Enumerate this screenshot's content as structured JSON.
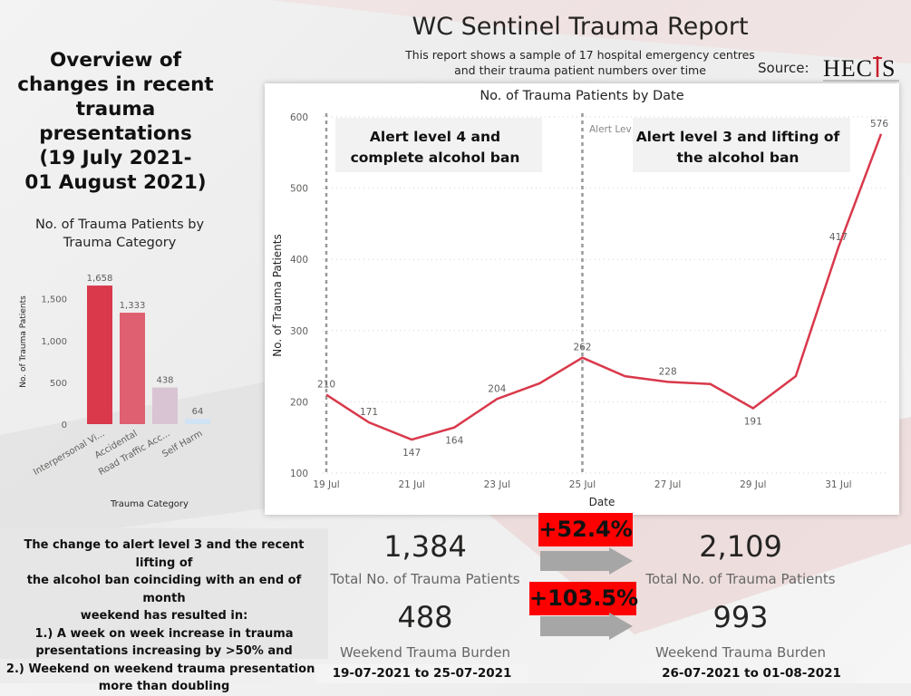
{
  "header": {
    "title": "WC Sentinel Trauma Report",
    "subtitle_line1": "This report shows a sample of 17 hospital emergency centres",
    "subtitle_line2": "and their trauma patient numbers over time",
    "source_label": "Source:",
    "logo_text": "HECTIS",
    "accent_color": "#e04050"
  },
  "overview": {
    "lines": [
      "Overview of",
      "changes in recent",
      "trauma",
      "presentations",
      "(19 July 2021-",
      "01 August 2021)"
    ]
  },
  "summary": {
    "lines": [
      "The change to alert level 3 and the recent lifting of",
      "the alcohol ban coinciding with an end of month",
      "weekend has resulted in:",
      "1.) A week on week increase in trauma",
      "presentations increasing by >50% and",
      "2.) Weekend on weekend trauma presentations",
      "more than doubling"
    ]
  },
  "kpis": {
    "week1": {
      "total": "1,384",
      "total_label": "Total No. of Trauma Patients",
      "weekend": "488",
      "weekend_label": "Weekend Trauma Burden",
      "period": "19-07-2021 to 25-07-2021"
    },
    "week2": {
      "total": "2,109",
      "total_label": "Total No. of Trauma Patients",
      "weekend": "993",
      "weekend_label": "Weekend Trauma Burden",
      "period": "26-07-2021 to 01-08-2021"
    },
    "change_total": "+52.4%",
    "change_weekend": "+103.5%"
  },
  "chart_data": [
    {
      "type": "bar",
      "title": "No. of Trauma Patients by Trauma Category",
      "xlabel": "Trauma Category",
      "ylabel": "No. of Trauma Patients",
      "categories": [
        "Interpersonal Vi...",
        "Accidental",
        "Road Traffic Acc...",
        "Self Harm"
      ],
      "values": [
        1658,
        1333,
        438,
        64
      ],
      "value_labels": [
        "1,658",
        "1,333",
        "438",
        "64"
      ],
      "bar_colors": [
        "#d9394b",
        "#df6070",
        "#d8c4d3",
        "#cfe3f5"
      ],
      "yticks": [
        "0",
        "500",
        "1,000",
        "1,500"
      ],
      "ylim": [
        0,
        1800
      ],
      "grid": false
    },
    {
      "type": "line",
      "title": "No. of Trauma Patients by Date",
      "xlabel": "Date",
      "ylabel": "No. of Trauma Patients",
      "x": [
        "2021-07-19",
        "2021-07-20",
        "2021-07-21",
        "2021-07-22",
        "2021-07-23",
        "2021-07-24",
        "2021-07-25",
        "2021-07-26",
        "2021-07-27",
        "2021-07-28",
        "2021-07-29",
        "2021-07-30",
        "2021-07-31",
        "2021-08-01"
      ],
      "values": [
        210,
        171,
        147,
        164,
        204,
        226,
        262,
        236,
        228,
        225,
        191,
        236,
        417,
        576
      ],
      "point_labels": {
        "0": "210",
        "1": "171",
        "2": "147",
        "3": "164",
        "4": "204",
        "6": "262",
        "8": "228",
        "10": "191",
        "12": "417",
        "13": "576"
      },
      "xtick_labels": [
        "19 Jul",
        "21 Jul",
        "23 Jul",
        "25 Jul",
        "27 Jul",
        "29 Jul",
        "31 Jul"
      ],
      "yticks": [
        "100",
        "200",
        "300",
        "400",
        "500",
        "600"
      ],
      "ylim": [
        100,
        600
      ],
      "grid": true,
      "line_color": "#d9394b",
      "annotations": [
        "Alert level 4 and complete alcohol ban",
        "Alert level 3 and lifting of the alcohol ban",
        "Alert Lev"
      ]
    }
  ]
}
